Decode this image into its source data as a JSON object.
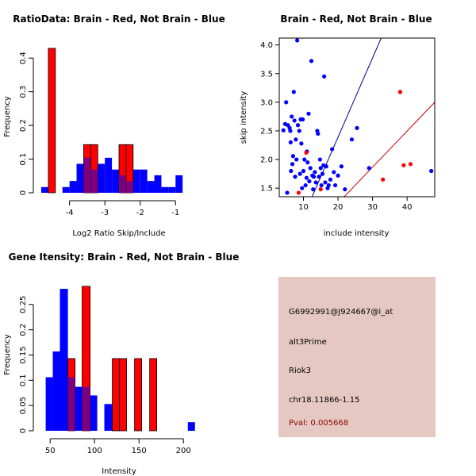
{
  "colors": {
    "red": "#ff0000",
    "blue": "#0000ff",
    "overlap": "#7f007f",
    "info_bg": "#e6c8c2",
    "pval": "#8b0000"
  },
  "chart_data": [
    {
      "type": "bar",
      "id": "ratio",
      "title": "RatioData: Brain - Red, Not Brain - Blue",
      "xlabel": "Log2 Ratio Skip/Include",
      "ylabel": "Frequency",
      "xlim": [
        -4.8,
        -0.4
      ],
      "ylim": [
        0,
        0.45
      ],
      "xticks": [
        -4,
        -3,
        -2,
        -1
      ],
      "yticks": [
        0.0,
        0.1,
        0.2,
        0.3,
        0.4
      ],
      "series": [
        {
          "name": "Not Brain",
          "color": "blue",
          "bins": [
            [
              -4.8,
              -4.6,
              0.017
            ],
            [
              -4.2,
              -4.0,
              0.017
            ],
            [
              -4.0,
              -3.8,
              0.035
            ],
            [
              -3.8,
              -3.6,
              0.086
            ],
            [
              -3.6,
              -3.4,
              0.104
            ],
            [
              -3.4,
              -3.2,
              0.069
            ],
            [
              -3.2,
              -3.0,
              0.086
            ],
            [
              -3.0,
              -2.8,
              0.104
            ],
            [
              -2.8,
              -2.6,
              0.069
            ],
            [
              -2.6,
              -2.4,
              0.052
            ],
            [
              -2.4,
              -2.2,
              0.035
            ],
            [
              -2.2,
              -2.0,
              0.069
            ],
            [
              -2.0,
              -1.8,
              0.069
            ],
            [
              -1.8,
              -1.6,
              0.035
            ],
            [
              -1.6,
              -1.4,
              0.052
            ],
            [
              -1.4,
              -1.2,
              0.017
            ],
            [
              -1.2,
              -1.0,
              0.017
            ],
            [
              -1.0,
              -0.8,
              0.052
            ]
          ]
        },
        {
          "name": "Brain",
          "color": "red",
          "bins": [
            [
              -4.6,
              -4.4,
              0.429
            ],
            [
              -3.6,
              -3.4,
              0.143
            ],
            [
              -3.4,
              -3.2,
              0.143
            ],
            [
              -2.6,
              -2.4,
              0.143
            ],
            [
              -2.4,
              -2.2,
              0.143
            ]
          ]
        }
      ]
    },
    {
      "type": "scatter",
      "id": "scatter",
      "title": "Brain - Red, Not Brain - Blue",
      "xlabel": "include intensity",
      "ylabel": "skip intensity",
      "xlim": [
        3,
        48
      ],
      "ylim": [
        1.35,
        4.12
      ],
      "xticks": [
        10,
        20,
        30,
        40
      ],
      "yticks": [
        1.5,
        2.0,
        2.5,
        3.0,
        3.5,
        4.0
      ],
      "series": [
        {
          "name": "Not Brain",
          "color": "blue",
          "points": [
            [
              4.2,
              2.51
            ],
            [
              4.7,
              2.62
            ],
            [
              5.0,
              3.0
            ],
            [
              5.3,
              1.42
            ],
            [
              5.5,
              2.6
            ],
            [
              6.0,
              2.55
            ],
            [
              6.2,
              2.5
            ],
            [
              6.3,
              2.3
            ],
            [
              6.4,
              1.8
            ],
            [
              6.6,
              2.75
            ],
            [
              6.8,
              1.92
            ],
            [
              7.0,
              2.06
            ],
            [
              7.2,
              3.18
            ],
            [
              7.4,
              2.68
            ],
            [
              7.6,
              1.7
            ],
            [
              7.8,
              2.35
            ],
            [
              8.0,
              2.0
            ],
            [
              8.2,
              4.08
            ],
            [
              8.4,
              2.6
            ],
            [
              8.8,
              2.5
            ],
            [
              9.0,
              1.75
            ],
            [
              9.2,
              2.7
            ],
            [
              9.4,
              2.28
            ],
            [
              9.6,
              1.5
            ],
            [
              9.8,
              2.7
            ],
            [
              10.0,
              1.8
            ],
            [
              10.3,
              2.0
            ],
            [
              10.6,
              1.55
            ],
            [
              10.9,
              1.68
            ],
            [
              11.0,
              2.14
            ],
            [
              11.2,
              1.95
            ],
            [
              11.5,
              2.8
            ],
            [
              11.7,
              1.62
            ],
            [
              12.0,
              1.85
            ],
            [
              12.3,
              3.72
            ],
            [
              12.6,
              1.72
            ],
            [
              12.8,
              1.48
            ],
            [
              13.0,
              1.7
            ],
            [
              13.3,
              1.78
            ],
            [
              13.6,
              1.6
            ],
            [
              14.0,
              2.5
            ],
            [
              14.2,
              2.45
            ],
            [
              14.5,
              1.7
            ],
            [
              14.8,
              2.0
            ],
            [
              15.0,
              1.85
            ],
            [
              15.2,
              1.55
            ],
            [
              15.5,
              1.75
            ],
            [
              15.8,
              1.9
            ],
            [
              16.0,
              3.45
            ],
            [
              16.3,
              1.6
            ],
            [
              16.6,
              1.88
            ],
            [
              17.0,
              1.5
            ],
            [
              17.3,
              1.55
            ],
            [
              17.8,
              1.65
            ],
            [
              18.3,
              2.18
            ],
            [
              18.8,
              1.78
            ],
            [
              19.2,
              1.55
            ],
            [
              20.0,
              1.72
            ],
            [
              21.0,
              1.88
            ],
            [
              22.0,
              1.48
            ],
            [
              24.0,
              2.35
            ],
            [
              25.5,
              2.55
            ],
            [
              29.0,
              1.85
            ],
            [
              47.0,
              1.8
            ]
          ]
        },
        {
          "name": "Brain",
          "color": "red",
          "points": [
            [
              8.6,
              1.42
            ],
            [
              10.8,
              2.12
            ],
            [
              15.0,
              1.48
            ],
            [
              33.0,
              1.65
            ],
            [
              38.0,
              3.18
            ],
            [
              39.0,
              1.9
            ],
            [
              41.0,
              1.92
            ]
          ]
        }
      ],
      "lines": [
        {
          "color": "blue",
          "from": [
            12.5,
            1.35
          ],
          "to": [
            32.5,
            4.12
          ]
        },
        {
          "color": "red",
          "from": [
            21.8,
            1.35
          ],
          "to": [
            48.0,
            3.0
          ]
        }
      ]
    },
    {
      "type": "bar",
      "id": "intensity",
      "title": "Gene Itensity: Brain - Red, Not Brain - Blue",
      "xlabel": "Intensity",
      "ylabel": "Frequency",
      "xlim": [
        40,
        215
      ],
      "ylim": [
        0,
        0.3
      ],
      "xticks": [
        50,
        100,
        150,
        200
      ],
      "yticks": [
        0.0,
        0.05,
        0.1,
        0.15,
        0.2,
        0.25
      ],
      "series": [
        {
          "name": "Not Brain",
          "color": "blue",
          "bins": [
            [
              45,
              53,
              0.106
            ],
            [
              53,
              61,
              0.157
            ],
            [
              61,
              70,
              0.281
            ],
            [
              70,
              78,
              0.106
            ],
            [
              78,
              86,
              0.087
            ],
            [
              86,
              95,
              0.087
            ],
            [
              95,
              103,
              0.07
            ],
            [
              111,
              120,
              0.053
            ],
            [
              205,
              213,
              0.017
            ]
          ]
        },
        {
          "name": "Brain",
          "color": "red",
          "bins": [
            [
              70,
              78,
              0.143
            ],
            [
              86,
              95,
              0.286
            ],
            [
              120,
              128,
              0.143
            ],
            [
              128,
              136,
              0.143
            ],
            [
              145,
              153,
              0.143
            ],
            [
              162,
              170,
              0.143
            ]
          ]
        }
      ]
    }
  ],
  "info_panel": {
    "probe_id": "G6992991@J924667@i_at",
    "event_type": "alt3Prime",
    "gene": "Riok3",
    "location": "chr18.11866-1.15",
    "pval": "Pval: 0.005668"
  }
}
